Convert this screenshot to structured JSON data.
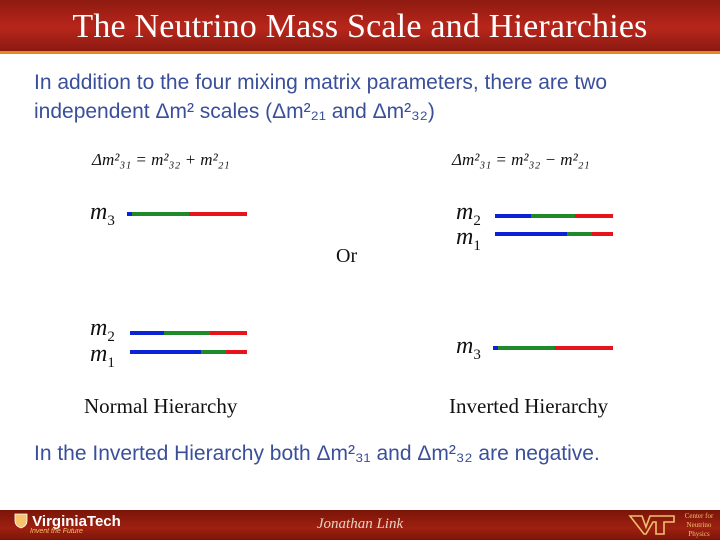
{
  "title": "The Neutrino Mass Scale and Hierarchies",
  "intro": {
    "line1": "In addition to the four mixing  matrix parameters, there are two",
    "line2": "independent Δm² scales (Δm²₂₁ and Δm²₃₂)"
  },
  "formulas": {
    "normal": "Δm²₃₁ = m²₃₂ + m²₂₁",
    "inverted": "Δm²₃₁ = m²₃₂ − m²₂₁"
  },
  "normal": {
    "caption": "Normal Hierarchy",
    "m3": "m",
    "m3_sub": "3",
    "m2": "m",
    "m2_sub": "2",
    "m1": "m",
    "m1_sub": "1"
  },
  "inverted": {
    "caption": "Inverted Hierarchy",
    "m2": "m",
    "m2_sub": "2",
    "m1": "m",
    "m1_sub": "1",
    "m3": "m",
    "m3_sub": "3"
  },
  "or_label": "Or",
  "note": "In the Inverted Hierarchy both Δm²₃₁ and Δm²₃₂ are negative.",
  "footer": {
    "logo_text": "VirginiaTech",
    "logo_tagline": "Invent the Future",
    "author": "Jonathan Link",
    "center_text": "Center for Neutrino Physics"
  },
  "colors": {
    "title_bg": "#b8261b",
    "text_blue": "#3a4f9a",
    "flavor_e": "#0b22d6",
    "flavor_mu": "#1f8a2a",
    "flavor_tau": "#e8141c"
  }
}
